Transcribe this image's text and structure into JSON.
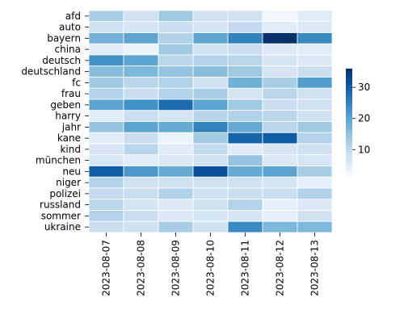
{
  "chart_data": {
    "type": "heatmap",
    "rows": [
      "afd",
      "auto",
      "bayern",
      "china",
      "deutsch",
      "deutschland",
      "fc",
      "frau",
      "geben",
      "harry",
      "jahr",
      "kane",
      "kind",
      "münchen",
      "neu",
      "niger",
      "polizei",
      "russland",
      "sommer",
      "ukraine"
    ],
    "columns": [
      "2023-08-07",
      "2023-08-08",
      "2023-08-09",
      "2023-08-10",
      "2023-08-11",
      "2023-08-12",
      "2023-08-13"
    ],
    "values": [
      [
        13,
        8,
        14,
        8,
        8,
        2,
        5
      ],
      [
        8,
        7,
        9,
        7,
        10,
        5,
        6
      ],
      [
        18,
        20,
        12,
        20,
        25,
        36,
        24
      ],
      [
        5,
        3,
        14,
        8,
        9,
        6,
        5
      ],
      [
        23,
        20,
        11,
        12,
        11,
        7,
        6
      ],
      [
        16,
        17,
        15,
        16,
        14,
        7,
        9
      ],
      [
        14,
        11,
        12,
        8,
        18,
        13,
        21
      ],
      [
        12,
        9,
        12,
        13,
        7,
        11,
        8
      ],
      [
        20,
        23,
        28,
        20,
        14,
        9,
        8
      ],
      [
        5,
        9,
        7,
        11,
        12,
        11,
        8
      ],
      [
        15,
        20,
        19,
        25,
        19,
        11,
        14
      ],
      [
        5,
        9,
        3,
        14,
        29,
        30,
        12
      ],
      [
        7,
        11,
        5,
        10,
        5,
        7,
        8
      ],
      [
        7,
        5,
        6,
        8,
        15,
        6,
        7
      ],
      [
        30,
        22,
        19,
        32,
        19,
        20,
        13
      ],
      [
        12,
        8,
        8,
        8,
        8,
        7,
        4
      ],
      [
        10,
        9,
        12,
        8,
        9,
        9,
        12
      ],
      [
        11,
        7,
        6,
        8,
        12,
        4,
        6
      ],
      [
        12,
        9,
        6,
        7,
        7,
        4,
        8
      ],
      [
        9,
        8,
        13,
        8,
        24,
        17,
        17
      ]
    ],
    "colorbar": {
      "min": 1,
      "max": 36,
      "ticks": [
        10,
        20,
        30
      ]
    },
    "colormap": "Blues",
    "cell_border_color": "#ffffff"
  }
}
